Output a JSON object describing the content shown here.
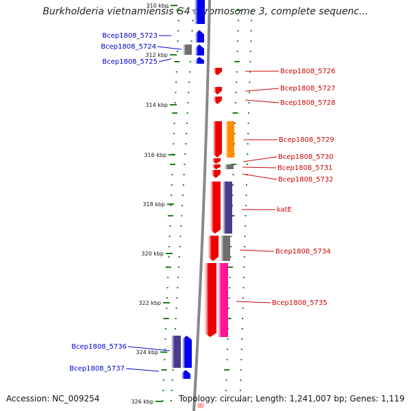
{
  "title": "Burkholderia vietnamiensis G4 chromosome 3, complete sequenc...",
  "footer": {
    "accession": "Accession: NC_009254",
    "topology": "Topology: circular; Length: 1,241,007 bp; Genes: 1,119"
  },
  "scale_labels": [
    "310 kbp",
    "312 kbp",
    "314 kbp",
    "316 kbp",
    "318 kbp",
    "320 kbp",
    "322 kbp",
    "324 kbp",
    "326 kbp"
  ],
  "colors": {
    "forward_gene": "#0000ee",
    "reverse_gene": "#ee0000",
    "forward_label": "#0000cc",
    "reverse_label": "#cc0000",
    "backbone": "#888888",
    "ticks": "#1a7a1a",
    "cog_orange": "#ff8c00",
    "cog_purple": "#483d8b",
    "cog_gray": "#6e6e6e",
    "cog_pink": "#ff1493"
  },
  "genes": {
    "forward": [
      "Bcep1808_5723",
      "Bcep1808_5724",
      "Bcep1808_5725",
      "Bcep1808_5736",
      "Bcep1808_5737"
    ],
    "reverse": [
      "Bcep1808_5726",
      "Bcep1808_5727",
      "Bcep1808_5728",
      "Bcep1808_5729",
      "Bcep1808_5730",
      "Bcep1808_5731",
      "Bcep1808_5732",
      "katE",
      "Bcep1808_5734",
      "Bcep1808_5735"
    ]
  }
}
